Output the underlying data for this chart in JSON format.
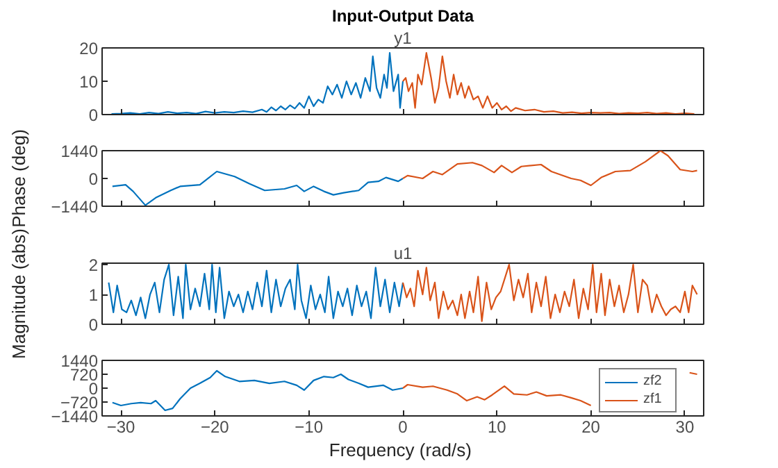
{
  "chart_data": [
    {
      "type": "line",
      "title": "Input-Output Data",
      "subtitle": "y1",
      "xlim": [
        -32,
        32
      ],
      "xticks": [
        -30,
        -20,
        -10,
        0,
        10,
        20,
        30
      ],
      "ylim": [
        0,
        20
      ],
      "yticks": [
        0,
        10,
        20
      ],
      "tick_labels": "y",
      "series": [
        {
          "color": "#0072bd",
          "x": [
            -31,
            -30,
            -29,
            -28,
            -27,
            -26,
            -25,
            -24,
            -23,
            -22,
            -21,
            -20,
            -19,
            -18,
            -17,
            -16,
            -15,
            -14.5,
            -14,
            -13.5,
            -13,
            -12.5,
            -12,
            -11.5,
            -11,
            -10.5,
            -10,
            -9.5,
            -9,
            -8.5,
            -8,
            -7.5,
            -7,
            -6.5,
            -6,
            -5.5,
            -5,
            -4.5,
            -4,
            -3.5,
            -3.2,
            -2.8,
            -2.4,
            -2,
            -1.7,
            -1.4,
            -1,
            -0.5,
            -0.3,
            0
          ],
          "values": [
            0.2,
            0.3,
            0.5,
            0.2,
            0.6,
            0.3,
            0.8,
            0.4,
            0.6,
            0.3,
            0.9,
            0.5,
            0.8,
            0.6,
            1.0,
            0.7,
            1.5,
            0.8,
            2.2,
            1.2,
            2.5,
            1.5,
            2.8,
            1.8,
            3.5,
            2,
            5.5,
            2.5,
            4.5,
            3.5,
            8.5,
            6,
            9,
            5,
            10,
            6,
            9.5,
            5,
            11,
            7,
            17.5,
            8,
            5,
            12,
            8,
            18.5,
            7,
            12,
            2,
            10
          ]
        },
        {
          "color": "#d95319",
          "x": [
            0,
            0.3,
            0.6,
            1,
            1.3,
            1.6,
            2,
            2.5,
            3,
            3.4,
            3.8,
            4.2,
            4.6,
            5,
            5.4,
            5.8,
            6.2,
            6.6,
            7,
            7.5,
            8,
            8.5,
            9,
            9.5,
            10,
            10.5,
            11,
            11.5,
            12,
            13,
            14,
            15,
            16,
            17,
            18,
            19,
            20,
            21,
            22,
            23,
            24,
            25,
            26,
            27,
            28,
            29,
            30,
            31
          ],
          "values": [
            10,
            11,
            7,
            9.5,
            2,
            12,
            9,
            18.5,
            11,
            3.5,
            8,
            17.5,
            10,
            5,
            12,
            6,
            9.5,
            5,
            8.5,
            4.5,
            5.5,
            2,
            5.5,
            2,
            3.5,
            1.5,
            2.5,
            1,
            2,
            1.2,
            1.5,
            0.8,
            1.0,
            0.5,
            0.7,
            0.4,
            0.6,
            0.5,
            0.6,
            0.3,
            0.5,
            0.4,
            0.6,
            0.3,
            0.5,
            0.2,
            0.4,
            0.2
          ]
        }
      ]
    },
    {
      "type": "line",
      "ylabel": "Phase (deg)",
      "xlim": [
        -32,
        32
      ],
      "xticks": [
        -30,
        -20,
        -10,
        0,
        10,
        20,
        30
      ],
      "ylim": [
        -1440,
        1440
      ],
      "yticks": [
        -1440,
        0,
        1440
      ],
      "tick_labels": "y",
      "series": [
        {
          "color": "#0072bd",
          "x": [
            -30.9,
            -29.5,
            -28.7,
            -27.4,
            -26.3,
            -24.7,
            -23.7,
            -21.6,
            -19.8,
            -17.9,
            -16.3,
            -14.7,
            -12.6,
            -11.3,
            -10.5,
            -9.5,
            -8.4,
            -7.4,
            -6.3,
            -4.7,
            -3.7,
            -2.6,
            -1.8,
            -0.5,
            0
          ],
          "values": [
            -410,
            -330,
            -670,
            -1390,
            -1000,
            -620,
            -410,
            -330,
            360,
            100,
            -280,
            -620,
            -540,
            -360,
            -670,
            -410,
            -670,
            -850,
            -740,
            -620,
            -200,
            -150,
            50,
            -150,
            0
          ]
        },
        {
          "color": "#d95319",
          "x": [
            0,
            0.5,
            2.1,
            3.2,
            4.2,
            5.8,
            7.4,
            8.4,
            9.7,
            10.5,
            11.6,
            12.6,
            14.7,
            15.8,
            17.9,
            18.9,
            20,
            21.1,
            22.6,
            24.2,
            25.8,
            27.4,
            28.2,
            29.5,
            30.8,
            31.3
          ],
          "values": [
            0,
            150,
            0,
            360,
            200,
            750,
            820,
            670,
            310,
            670,
            310,
            620,
            720,
            360,
            0,
            -100,
            -360,
            50,
            360,
            410,
            870,
            1440,
            1180,
            460,
            360,
            410
          ]
        }
      ]
    },
    {
      "type": "line",
      "title": "u1",
      "ylabel": "Magnitude (abs)",
      "xlim": [
        -32,
        32
      ],
      "xticks": [
        -30,
        -20,
        -10,
        0,
        10,
        20,
        30
      ],
      "ylim": [
        0,
        2.05
      ],
      "yticks": [
        0,
        1,
        2
      ],
      "tick_labels": "y",
      "series": [
        {
          "color": "#0072bd",
          "x": [
            -31.3,
            -30.8,
            -30.4,
            -29.9,
            -29.4,
            -28.9,
            -28.4,
            -27.9,
            -27.4,
            -26.9,
            -26.4,
            -25.9,
            -25.4,
            -24.9,
            -24.4,
            -23.9,
            -23.4,
            -23.1,
            -22.6,
            -22.1,
            -21.6,
            -21.1,
            -20.6,
            -20.3,
            -19.9,
            -19.5,
            -19.0,
            -18.5,
            -18.0,
            -17.5,
            -17.0,
            -16.5,
            -16.0,
            -15.5,
            -15.0,
            -14.5,
            -14.0,
            -13.5,
            -13.0,
            -12.5,
            -12.0,
            -11.5,
            -11.2,
            -10.8,
            -10.3,
            -9.8,
            -9.3,
            -8.8,
            -8.3,
            -7.9,
            -7.4,
            -6.9,
            -6.4,
            -5.9,
            -5.4,
            -4.9,
            -4.4,
            -3.9,
            -3.4,
            -2.9,
            -2.4,
            -1.9,
            -1.4,
            -0.9,
            -0.4,
            0
          ],
          "values": [
            1.4,
            0.4,
            1.3,
            0.5,
            0.4,
            0.8,
            0.3,
            0.9,
            0.2,
            1.0,
            1.4,
            0.4,
            1.5,
            2.0,
            0.3,
            1.6,
            0.2,
            2.0,
            0.5,
            1.2,
            0.6,
            1.7,
            0.5,
            2.0,
            0.4,
            1.9,
            0.2,
            1.1,
            0.6,
            1.0,
            0.4,
            1.1,
            0.5,
            1.4,
            0.6,
            1.8,
            0.4,
            1.5,
            0.6,
            1.2,
            1.5,
            0.5,
            2.0,
            0.8,
            0.2,
            1.3,
            0.5,
            1.0,
            0.4,
            1.6,
            0.2,
            1.1,
            0.6,
            1.2,
            0.3,
            1.3,
            0.6,
            1.1,
            0.2,
            1.9,
            0.6,
            1.5,
            0.4,
            1.4,
            0.6,
            1.4
          ]
        },
        {
          "color": "#d95319",
          "x": [
            0,
            0.4,
            0.8,
            1.2,
            1.6,
            2.1,
            2.5,
            2.9,
            3.4,
            3.8,
            4.3,
            4.8,
            5.3,
            5.8,
            6.2,
            6.6,
            7.1,
            7.5,
            8.0,
            8.4,
            8.9,
            9.4,
            9.9,
            10.4,
            10.9,
            11.3,
            11.8,
            12.3,
            12.8,
            13.3,
            13.7,
            14.2,
            14.7,
            15.2,
            15.7,
            16.2,
            16.7,
            17.2,
            17.7,
            18.2,
            18.7,
            19.2,
            19.7,
            20.2,
            20.6,
            21.1,
            21.5,
            22.0,
            22.5,
            23.0,
            23.5,
            24.0,
            24.5,
            25.0,
            25.5,
            26.0,
            26.5,
            27.0,
            27.5,
            28.0,
            28.5,
            29.0,
            29.5,
            30.0,
            30.4,
            30.8,
            31.3
          ],
          "values": [
            1.4,
            0.9,
            1.2,
            0.6,
            1.8,
            1.0,
            1.9,
            0.8,
            1.4,
            0.2,
            1.1,
            0.5,
            0.8,
            0.3,
            1.0,
            0.2,
            1.1,
            0.4,
            1.6,
            0.1,
            1.4,
            0.5,
            0.9,
            1.1,
            1.6,
            2.0,
            0.8,
            1.5,
            0.9,
            1.7,
            0.4,
            1.4,
            0.6,
            1.6,
            0.2,
            1.0,
            0.4,
            1.1,
            0.6,
            1.5,
            0.2,
            1.2,
            0.5,
            2.0,
            0.4,
            1.7,
            0.3,
            1.5,
            0.6,
            1.3,
            0.4,
            1.0,
            2.0,
            0.4,
            1.5,
            1.3,
            0.4,
            1.0,
            0.6,
            0.3,
            0.5,
            0.6,
            0.4,
            1.1,
            0.4,
            1.3,
            1.0
          ]
        }
      ]
    },
    {
      "type": "line",
      "xlabel": "Frequency  (rad/s)",
      "xlim": [
        -32,
        32
      ],
      "xticks": [
        -30,
        -20,
        -10,
        0,
        10,
        20,
        30
      ],
      "ylim": [
        -1440,
        1440
      ],
      "yticks": [
        -1440,
        -720,
        0,
        720,
        1440
      ],
      "legend": "bottom right",
      "series": [
        {
          "name": "zf2",
          "color": "#0072bd",
          "x": [
            -30.9,
            -30,
            -28.9,
            -27.9,
            -26.8,
            -26.3,
            -25.3,
            -24.5,
            -23.7,
            -22.6,
            -21.6,
            -20.5,
            -19.8,
            -18.9,
            -17.4,
            -15.8,
            -14.2,
            -12.6,
            -11.3,
            -10.5,
            -9.5,
            -8.4,
            -7.4,
            -6.6,
            -5.8,
            -4.7,
            -3.7,
            -2.1,
            -1.1,
            0
          ],
          "values": [
            -750,
            -900,
            -800,
            -750,
            -800,
            -650,
            -1150,
            -1050,
            -550,
            0,
            250,
            550,
            900,
            600,
            350,
            400,
            250,
            350,
            150,
            -100,
            400,
            600,
            550,
            720,
            450,
            250,
            50,
            150,
            -100,
            0
          ]
        },
        {
          "name": "zf1",
          "color": "#d95319",
          "x": [
            0,
            0.5,
            2.1,
            3.2,
            4.7,
            5.8,
            6.8,
            7.9,
            8.7,
            9.5,
            10.8,
            11.8,
            13.2,
            14.2,
            15.3,
            16.8,
            17.9,
            18.9,
            20.0,
            20.4,
            30.5,
            31.3
          ],
          "values": [
            0,
            180,
            50,
            100,
            -100,
            -300,
            -650,
            -450,
            -600,
            -350,
            100,
            -300,
            -350,
            -200,
            -400,
            -350,
            -500,
            -650,
            -900,
            null,
            800,
            720
          ]
        }
      ]
    }
  ]
}
